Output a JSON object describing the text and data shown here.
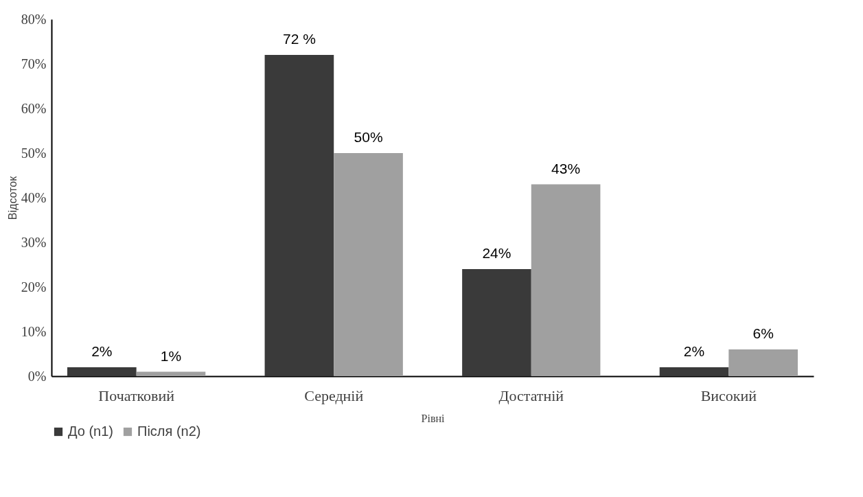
{
  "chart_data": {
    "type": "bar",
    "xlabel": "Рівні",
    "ylabel": "Відсоток",
    "categories": [
      "Початковий",
      "Середній",
      "Достатній",
      "Високий"
    ],
    "series": [
      {
        "name": "До (n1)",
        "color": "#3a3a3a",
        "values": [
          2,
          72,
          24,
          2
        ],
        "value_labels": [
          "2%",
          "72 %",
          "24%",
          "2%"
        ]
      },
      {
        "name": "Після (n2)",
        "color": "#a0a0a0",
        "values": [
          1,
          50,
          43,
          6
        ],
        "value_labels": [
          "1%",
          "50%",
          "43%",
          "6%"
        ]
      }
    ],
    "ylim": [
      0,
      80
    ],
    "yticks": [
      {
        "value": 0,
        "label": "0%"
      },
      {
        "value": 10,
        "label": "10%"
      },
      {
        "value": 20,
        "label": "20%"
      },
      {
        "value": 30,
        "label": "30%"
      },
      {
        "value": 40,
        "label": "40%"
      },
      {
        "value": 50,
        "label": "50%"
      },
      {
        "value": 60,
        "label": "60%"
      },
      {
        "value": 70,
        "label": "70%"
      },
      {
        "value": 80,
        "label": "80%"
      }
    ],
    "grid": false,
    "legend": "bottom"
  }
}
